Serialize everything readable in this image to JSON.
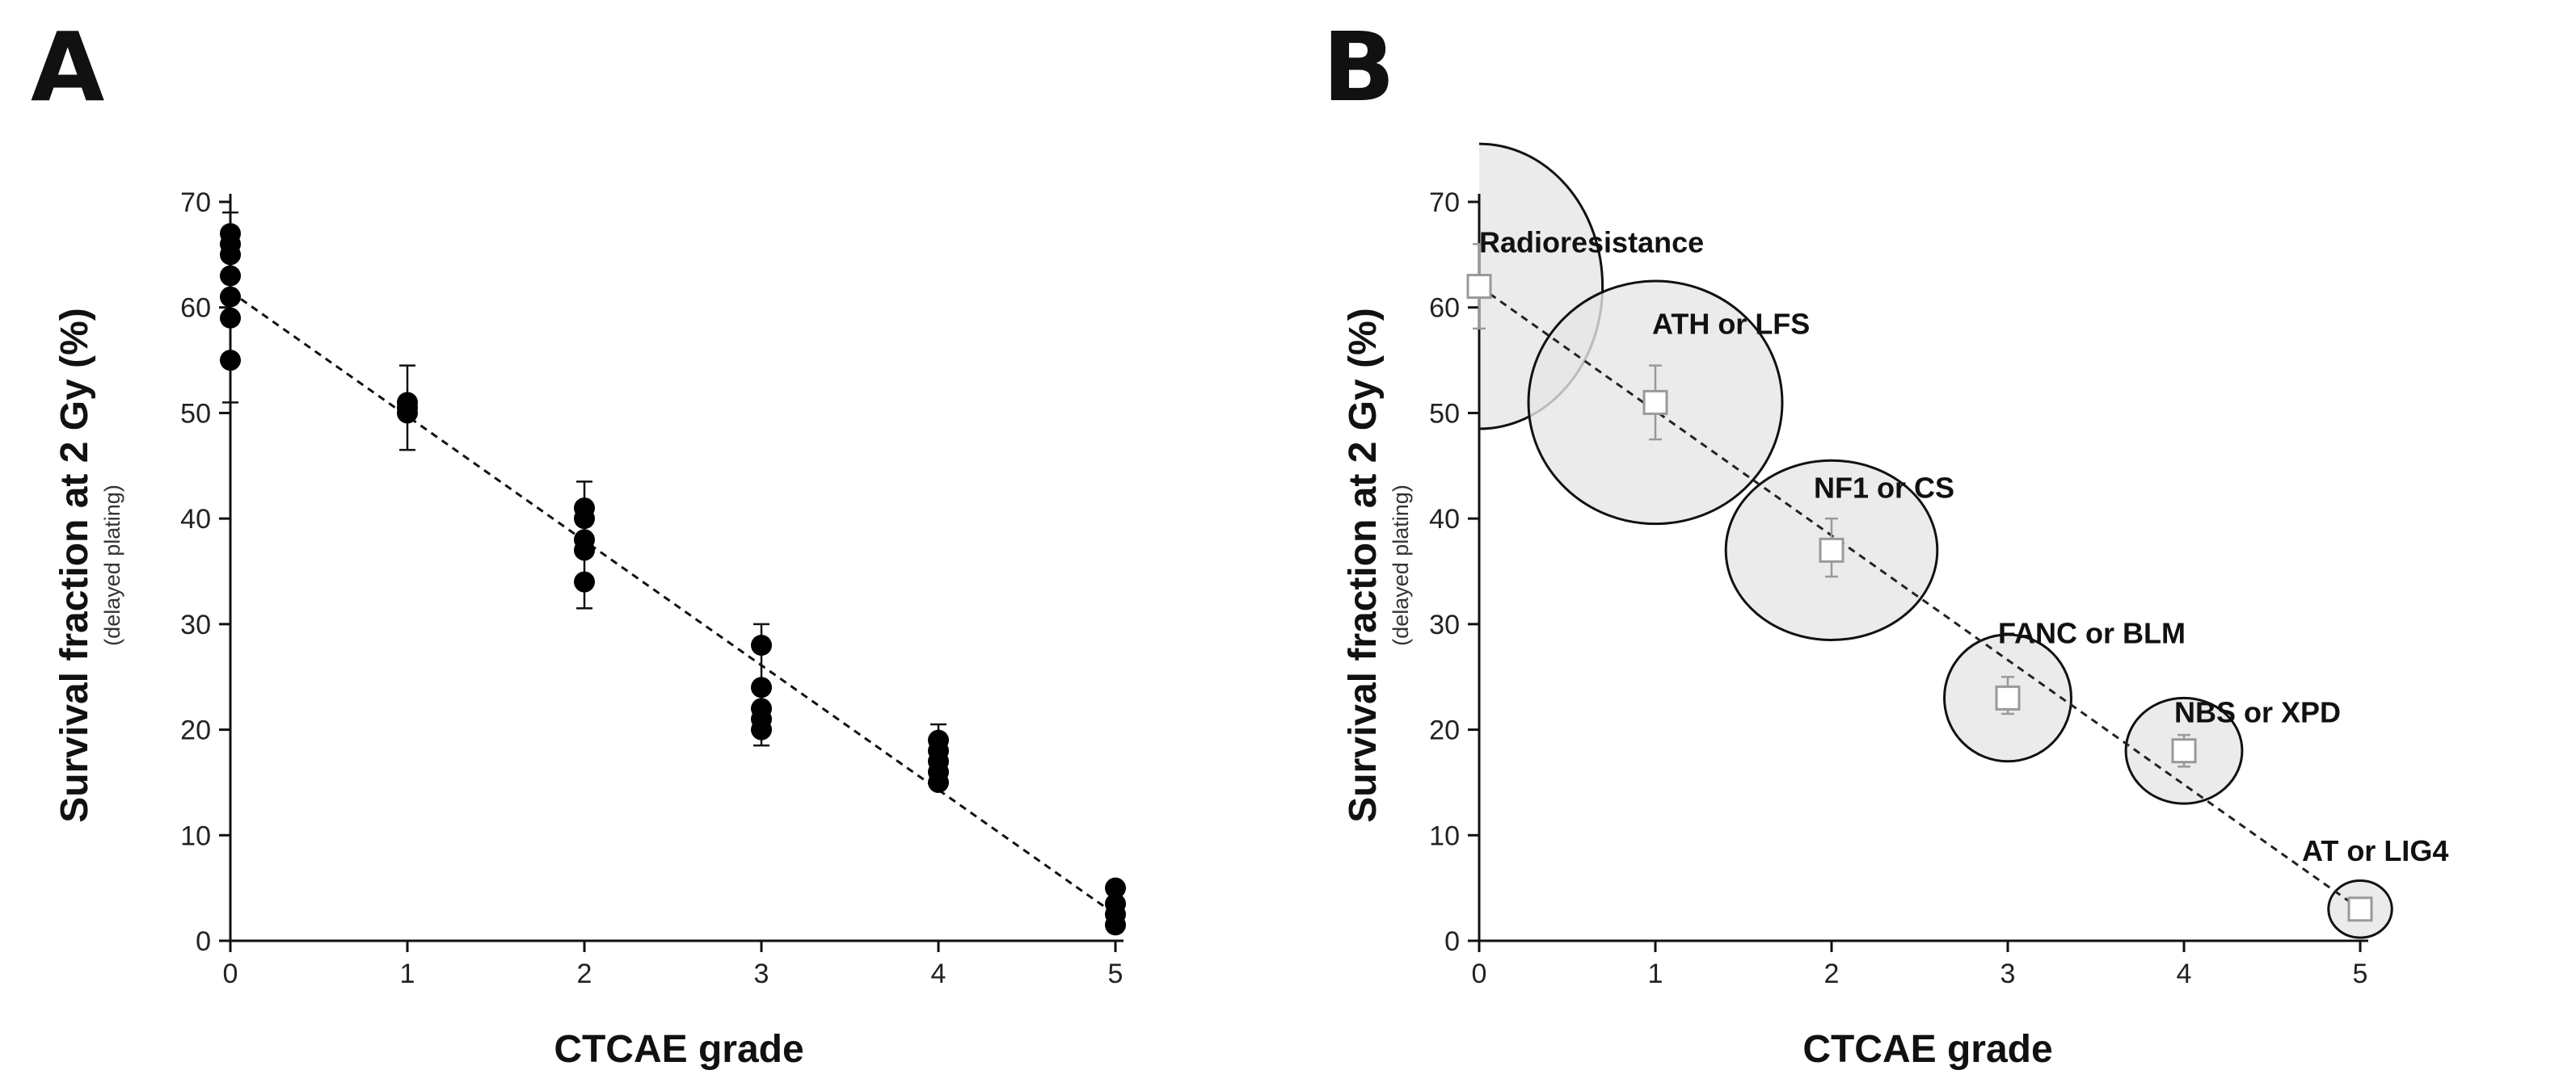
{
  "chart_data": [
    {
      "panel": "A",
      "type": "scatter",
      "xlabel": "CTCAE grade",
      "ylabel": "Survival fraction at 2 Gy (%)",
      "ylabel_sub": "(delayed plating)",
      "xlim": [
        0,
        5
      ],
      "ylim": [
        0,
        70
      ],
      "xticks": [
        0,
        1,
        2,
        3,
        4,
        5
      ],
      "yticks": [
        0,
        10,
        20,
        30,
        40,
        50,
        60,
        70
      ],
      "grid": false,
      "points": [
        {
          "x": 0,
          "values": [
            55,
            59,
            61,
            63,
            65,
            66,
            67
          ]
        },
        {
          "x": 1,
          "values": [
            50,
            50.5,
            51
          ]
        },
        {
          "x": 2,
          "values": [
            34,
            37,
            38,
            40,
            41
          ]
        },
        {
          "x": 3,
          "values": [
            20,
            21,
            22,
            24,
            28
          ]
        },
        {
          "x": 4,
          "values": [
            15,
            16,
            17,
            18,
            19
          ]
        },
        {
          "x": 5,
          "values": [
            1.5,
            2.5,
            3.5,
            5
          ]
        }
      ],
      "error_bars": [
        {
          "x": 0,
          "low": 51,
          "high": 69
        },
        {
          "x": 1,
          "low": 46.5,
          "high": 54.5
        },
        {
          "x": 2,
          "low": 31.5,
          "high": 43.5
        },
        {
          "x": 3,
          "low": 18.5,
          "high": 30
        },
        {
          "x": 4,
          "low": 14.5,
          "high": 20.5
        },
        {
          "x": 5,
          "low": 1,
          "high": 5.5
        }
      ],
      "fit_line": {
        "x": [
          0,
          5
        ],
        "y": [
          61.5,
          2.5
        ],
        "style": "dashed"
      }
    },
    {
      "panel": "B",
      "type": "bubble",
      "xlabel": "CTCAE grade",
      "ylabel": "Survival fraction at 2 Gy (%)",
      "ylabel_sub": "(delayed plating)",
      "xlim": [
        0,
        5
      ],
      "ylim": [
        0,
        70
      ],
      "xticks": [
        0,
        1,
        2,
        3,
        4,
        5
      ],
      "yticks": [
        0,
        10,
        20,
        30,
        40,
        50,
        60,
        70
      ],
      "grid": false,
      "bubble_fill": "#e6e6e6",
      "marker_color": "#999999",
      "points": [
        {
          "x": 0,
          "y": 62,
          "err_low": 58,
          "err_high": 66,
          "label": "Radioresistance",
          "radius_x": 0.7,
          "radius_y": 13.5
        },
        {
          "x": 1,
          "y": 51,
          "err_low": 47.5,
          "err_high": 54.5,
          "label": "ATH or LFS",
          "radius_x": 0.72,
          "radius_y": 11.5
        },
        {
          "x": 2,
          "y": 37,
          "err_low": 34.5,
          "err_high": 40,
          "label": "NF1 or CS",
          "radius_x": 0.6,
          "radius_y": 8.5
        },
        {
          "x": 3,
          "y": 23,
          "err_low": 21.5,
          "err_high": 25,
          "label": "FANC or BLM",
          "radius_x": 0.36,
          "radius_y": 6
        },
        {
          "x": 4,
          "y": 18,
          "err_low": 16.5,
          "err_high": 19.5,
          "label": "NBS or XPD",
          "radius_x": 0.33,
          "radius_y": 5
        },
        {
          "x": 5,
          "y": 3,
          "err_low": 2,
          "err_high": 4,
          "label": "AT or LIG4",
          "radius_x": 0.18,
          "radius_y": 2.7
        }
      ],
      "fit_line": {
        "x": [
          0,
          5
        ],
        "y": [
          62,
          3
        ],
        "style": "dashed"
      }
    }
  ]
}
